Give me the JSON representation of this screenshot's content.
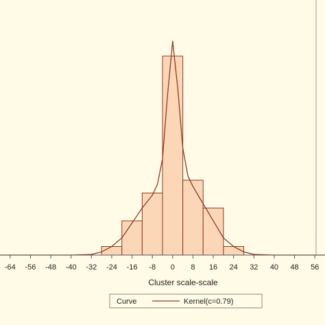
{
  "chart_data": {
    "type": "bar",
    "xlabel": "Cluster scale-scale",
    "ylabel": "",
    "title": "",
    "grid": false,
    "xlim": [
      -68,
      60
    ],
    "ylim": [
      0,
      1.0
    ],
    "x_ticks": [
      -64,
      -56,
      -48,
      -40,
      -32,
      -24,
      -16,
      -8,
      0,
      8,
      16,
      24,
      32,
      40,
      48,
      56
    ],
    "x_tick_labels": [
      "-64",
      "-56",
      "-48",
      "-40",
      "-32",
      "-24",
      "-16",
      "-8",
      "0",
      "8",
      "16",
      "24",
      "32",
      "40",
      "48",
      "56"
    ],
    "bar_width": 8,
    "bars": [
      {
        "center": -24,
        "value": 0.04
      },
      {
        "center": -16,
        "value": 0.16
      },
      {
        "center": -8,
        "value": 0.29
      },
      {
        "center": 0,
        "value": 0.93
      },
      {
        "center": 8,
        "value": 0.35
      },
      {
        "center": 16,
        "value": 0.22
      },
      {
        "center": 24,
        "value": 0.04
      }
    ],
    "series": [
      {
        "name": "Kernel(c=0.79)",
        "kind": "line",
        "x": [
          -68,
          -56,
          -48,
          -40,
          -32,
          -28,
          -24,
          -20,
          -16,
          -12,
          -10,
          -8,
          -6,
          -4,
          -2,
          0,
          2,
          4,
          6,
          8,
          10,
          12,
          16,
          20,
          24,
          28,
          32,
          40,
          48,
          56,
          60
        ],
        "y": [
          0.0,
          0.0,
          0.0,
          0.0,
          0.003,
          0.015,
          0.04,
          0.08,
          0.15,
          0.22,
          0.25,
          0.28,
          0.33,
          0.45,
          0.75,
          1.0,
          0.78,
          0.5,
          0.37,
          0.32,
          0.28,
          0.24,
          0.16,
          0.08,
          0.04,
          0.015,
          0.003,
          0.0,
          0.0,
          0.0,
          0.0
        ]
      }
    ],
    "legend": {
      "position": "bottom",
      "title": "Curve",
      "entries": [
        "Kernel(c=0.79)"
      ]
    },
    "colors": {
      "background": "#fffbe6",
      "bar_fill": "#fbd7b8",
      "bar_stroke": "#8b3a24",
      "line": "#8b3a24",
      "axis": "#555555"
    }
  }
}
